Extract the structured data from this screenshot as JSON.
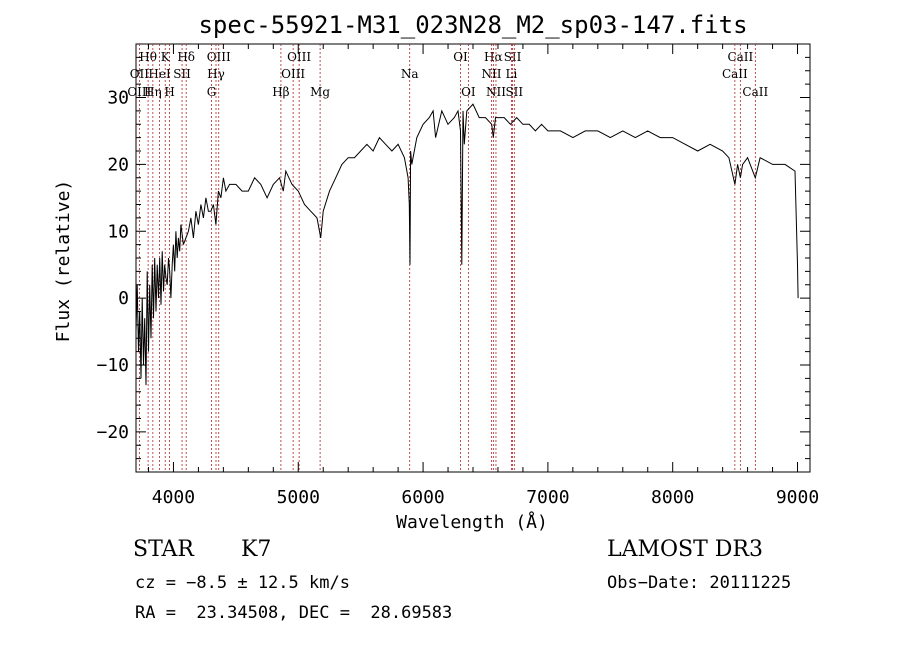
{
  "chart_data": {
    "type": "line",
    "title": "spec-55921-M31_023N28_M2_sp03-147.fits",
    "xlabel": "Wavelength (Å)",
    "ylabel": "Flux (relative)",
    "xlim": [
      3700,
      9100
    ],
    "ylim": [
      -26,
      38
    ],
    "x_ticks": [
      4000,
      5000,
      6000,
      7000,
      8000,
      9000
    ],
    "y_ticks": [
      -20,
      -10,
      0,
      10,
      20,
      30
    ],
    "series": [
      {
        "name": "flux",
        "x": [
          3700,
          3710,
          3720,
          3730,
          3740,
          3750,
          3760,
          3770,
          3780,
          3790,
          3800,
          3810,
          3820,
          3830,
          3840,
          3850,
          3860,
          3870,
          3880,
          3890,
          3900,
          3910,
          3920,
          3930,
          3940,
          3950,
          3960,
          3970,
          3980,
          3990,
          4000,
          4010,
          4020,
          4030,
          4040,
          4050,
          4060,
          4080,
          4100,
          4120,
          4140,
          4160,
          4180,
          4200,
          4220,
          4240,
          4260,
          4280,
          4300,
          4320,
          4340,
          4360,
          4380,
          4400,
          4420,
          4450,
          4500,
          4550,
          4600,
          4650,
          4700,
          4750,
          4800,
          4850,
          4880,
          4900,
          4950,
          5000,
          5050,
          5100,
          5150,
          5180,
          5190,
          5200,
          5250,
          5300,
          5350,
          5400,
          5450,
          5500,
          5550,
          5600,
          5650,
          5700,
          5750,
          5800,
          5850,
          5880,
          5890,
          5895,
          5900,
          5910,
          5950,
          6000,
          6050,
          6080,
          6100,
          6150,
          6200,
          6250,
          6280,
          6300,
          6310,
          6320,
          6330,
          6350,
          6400,
          6450,
          6500,
          6550,
          6563,
          6580,
          6600,
          6650,
          6700,
          6750,
          6800,
          6850,
          6900,
          6950,
          7000,
          7100,
          7200,
          7300,
          7400,
          7500,
          7600,
          7700,
          7800,
          7900,
          8000,
          8100,
          8200,
          8300,
          8400,
          8450,
          8498,
          8520,
          8542,
          8560,
          8600,
          8662,
          8700,
          8800,
          8900,
          8980,
          9000,
          9005
        ],
        "values": [
          -5,
          2,
          -8,
          -2,
          -12,
          0,
          -10,
          -3,
          -13,
          4,
          -8,
          2,
          -6,
          5,
          -3,
          6,
          -2,
          5,
          0,
          6,
          -1,
          7,
          1,
          5,
          3,
          2,
          6,
          4,
          0,
          5,
          8,
          4,
          10,
          6,
          9,
          7,
          11,
          8,
          9,
          10,
          12,
          9,
          13,
          11,
          14,
          12,
          15,
          13,
          13,
          14,
          11,
          16,
          15,
          18,
          16,
          17,
          17,
          16,
          16,
          18,
          17,
          15,
          17,
          18,
          16,
          19,
          17,
          16,
          14,
          13,
          12,
          9,
          11,
          13,
          16,
          18,
          20,
          21,
          21,
          22,
          23,
          22,
          24,
          23,
          22,
          23,
          21,
          18,
          14,
          5,
          22,
          20,
          24,
          26,
          27,
          28,
          24,
          28,
          26,
          27,
          28,
          25,
          5,
          28,
          23,
          28,
          29,
          27,
          27,
          26,
          24,
          27,
          27,
          27,
          26,
          27,
          26,
          26,
          25,
          26,
          25,
          25,
          24,
          25,
          25,
          24,
          25,
          24,
          25,
          24,
          24,
          23,
          22,
          23,
          22,
          21,
          17,
          20,
          18,
          20,
          21,
          18,
          21,
          20,
          20,
          19,
          5,
          0
        ]
      }
    ],
    "line_markers": [
      {
        "label": "Hθ",
        "x": 3797,
        "row": 1
      },
      {
        "label": "OII",
        "x": 3727,
        "row": 2
      },
      {
        "label": "OIII",
        "x": 3727,
        "row": 3
      },
      {
        "label": "K",
        "x": 3934,
        "row": 1
      },
      {
        "label": "HeI",
        "x": 3889,
        "row": 2
      },
      {
        "label": "Hη",
        "x": 3835,
        "row": 3
      },
      {
        "label": "SII",
        "x": 4069,
        "row": 2
      },
      {
        "label": "H",
        "x": 3969,
        "row": 3
      },
      {
        "label": "Hδ",
        "x": 4102,
        "row": 1
      },
      {
        "label": "OIII",
        "x": 4363,
        "row": 1
      },
      {
        "label": "Hγ",
        "x": 4341,
        "row": 2
      },
      {
        "label": "G",
        "x": 4305,
        "row": 3
      },
      {
        "label": "Hβ",
        "x": 4861,
        "row": 3
      },
      {
        "label": "OIII",
        "x": 5007,
        "row": 1
      },
      {
        "label": "OIII",
        "x": 4959,
        "row": 2
      },
      {
        "label": "Mg",
        "x": 5175,
        "row": 3
      },
      {
        "label": "Na",
        "x": 5893,
        "row": 2
      },
      {
        "label": "OI",
        "x": 6300,
        "row": 1
      },
      {
        "label": "OI",
        "x": 6363,
        "row": 3
      },
      {
        "label": "Hα",
        "x": 6563,
        "row": 1
      },
      {
        "label": "NII",
        "x": 6548,
        "row": 2
      },
      {
        "label": "NII",
        "x": 6584,
        "row": 3
      },
      {
        "label": "SII",
        "x": 6717,
        "row": 1
      },
      {
        "label": "Li",
        "x": 6708,
        "row": 2
      },
      {
        "label": "SII",
        "x": 6731,
        "row": 3
      },
      {
        "label": "CaII",
        "x": 8542,
        "row": 1
      },
      {
        "label": "CaII",
        "x": 8498,
        "row": 2
      },
      {
        "label": "CaII",
        "x": 8662,
        "row": 3
      }
    ],
    "marker_color": "#b22222"
  },
  "info": {
    "class_label": "STAR",
    "subclass": "K7",
    "survey": "LAMOST DR3",
    "redshift_line": "cz = −8.5 ± 12.5 km/s",
    "obs_date_line": "Obs−Date: 20111225",
    "coords_line": "RA =  23.34508, DEC =  28.69583"
  }
}
